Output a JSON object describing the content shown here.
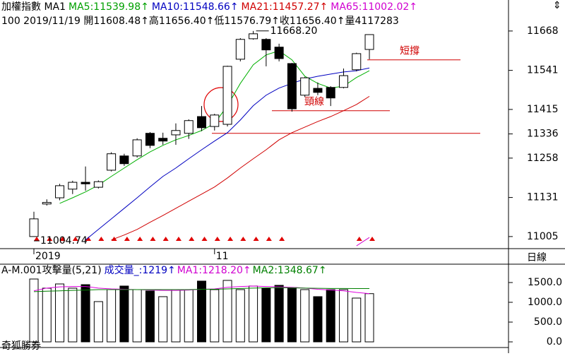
{
  "chart_data": [
    {
      "type": "candlestick",
      "header": [
        {
          "text": "加權指數 MA1",
          "color": "#000000"
        },
        {
          "text": "MA5:11539.98↑",
          "color": "#00a000"
        },
        {
          "text": "MA10:11548.66↑",
          "color": "#0000c0"
        },
        {
          "text": "MA21:11457.27↑",
          "color": "#d00000"
        },
        {
          "text": "MA65:11002.02↑",
          "color": "#d000d0"
        }
      ],
      "subheader": "100 2019/11/19 開11608.48↑高11656.40↑低11576.79↑收11656.40↑量4117283",
      "period_label": "日線",
      "categories": [
        "2019",
        null,
        null,
        null,
        null,
        null,
        null,
        null,
        null,
        null,
        null,
        null,
        null,
        null,
        "11",
        null,
        null,
        null,
        null,
        null,
        null,
        null,
        null,
        null,
        null,
        null,
        null
      ],
      "open": [
        11005,
        11110,
        11130,
        11158,
        11180,
        11164,
        11219,
        11265,
        11265,
        11338,
        11322,
        11333,
        11338,
        11392,
        11360,
        11367,
        11577,
        11643,
        11641,
        11616,
        11563,
        11461,
        11483,
        11486,
        11486,
        11543,
        11608.48
      ],
      "high": [
        11085,
        11125,
        11175,
        11185,
        11231,
        11186,
        11277,
        11272,
        11322,
        11342,
        11340,
        11370,
        11383,
        11426,
        11401,
        11556,
        11645,
        11668.2,
        11645,
        11627,
        11565,
        11520,
        11502,
        11490,
        11547,
        11598,
        11656.4
      ],
      "low": [
        11004.74,
        11105,
        11122,
        11142,
        11153,
        11160,
        11215,
        11233,
        11260,
        11290,
        11301,
        11301,
        11320,
        11345,
        11347,
        11360,
        11570,
        11640,
        11554,
        11570,
        11408,
        11455,
        11461,
        11426,
        11483,
        11538,
        11576.79
      ],
      "close": [
        11062,
        11115,
        11169,
        11180,
        11175,
        11182,
        11272,
        11240,
        11317,
        11299,
        11313,
        11347,
        11379,
        11356,
        11397,
        11554,
        11641,
        11659,
        11607,
        11579,
        11417,
        11517,
        11470,
        11452,
        11524,
        11595,
        11656.4
      ],
      "up_color": "#ffffff",
      "down_color": "#000000",
      "series": [
        {
          "name": "MA5",
          "color": "#00b000",
          "values": [
            null,
            null,
            11112,
            11130,
            11149,
            11171,
            11199,
            11226,
            11253,
            11278,
            11299,
            11317,
            11331,
            11347,
            11370,
            11427,
            11499,
            11559,
            11591,
            11604,
            11575,
            11522,
            11499,
            11484,
            11490,
            11518,
            11539.98
          ]
        },
        {
          "name": "MA10",
          "color": "#0000c0",
          "values": [
            null,
            null,
            null,
            null,
            10994,
            11028,
            11062,
            11096,
            11130,
            11165,
            11199,
            11226,
            11256,
            11285,
            11313,
            11340,
            11381,
            11427,
            11461,
            11484,
            11499,
            11513,
            11522,
            11529,
            11536,
            11540,
            11548.66
          ]
        },
        {
          "name": "MA21",
          "color": "#d00000",
          "values": [
            null,
            null,
            null,
            null,
            null,
            null,
            10994,
            11010,
            11028,
            11051,
            11073,
            11096,
            11119,
            11142,
            11165,
            11194,
            11226,
            11256,
            11285,
            11317,
            11340,
            11358,
            11376,
            11392,
            11411,
            11431,
            11457.27
          ]
        },
        {
          "name": "MA65",
          "color": "#d000d0",
          "values": [
            null,
            null,
            null,
            null,
            null,
            null,
            null,
            null,
            null,
            null,
            null,
            null,
            null,
            null,
            null,
            null,
            null,
            null,
            null,
            null,
            null,
            null,
            null,
            null,
            null,
            10975,
            11002.02
          ]
        }
      ],
      "annotations": [
        {
          "label": "11668.20",
          "value": 11668.2
        },
        {
          "label": "11004.74",
          "value": 11004.74
        }
      ],
      "reference_lines": [
        {
          "label": "短撐",
          "value": 11575
        },
        {
          "label": "頸線",
          "value": 11411
        },
        {
          "value": 11338
        }
      ],
      "line_color": "#d00000",
      "ylim": [
        10966,
        11768
      ],
      "yticks": [
        11005,
        11131,
        11258,
        11336,
        11415,
        11541,
        11668
      ]
    },
    {
      "type": "bar",
      "title": "A-M.001攻擊量(5,21)",
      "legend": [
        {
          "text": "成交量_:1219↑",
          "color": "#0000c0"
        },
        {
          "text": "MA1:1218.20↑",
          "color": "#d000d0"
        },
        {
          "text": "MA2:1348.67↑",
          "color": "#008000"
        }
      ],
      "footer": "奇狐勝券",
      "values": [
        1589,
        1357,
        1464,
        1357,
        1446,
        1018,
        1321,
        1411,
        1321,
        1286,
        1143,
        1321,
        1321,
        1536,
        1321,
        1554,
        1321,
        1411,
        1357,
        1429,
        1375,
        1321,
        1143,
        1321,
        1321,
        1107,
        1219
      ],
      "colors": [
        "#ffffff",
        "#ffffff",
        "#ffffff",
        "#ffffff",
        "#000000",
        "#ffffff",
        "#ffffff",
        "#000000",
        "#ffffff",
        "#000000",
        "#ffffff",
        "#ffffff",
        "#ffffff",
        "#000000",
        "#ffffff",
        "#ffffff",
        "#ffffff",
        "#ffffff",
        "#000000",
        "#000000",
        "#000000",
        "#ffffff",
        "#000000",
        "#000000",
        "#ffffff",
        "#ffffff",
        "#ffffff"
      ],
      "series": [
        {
          "name": "MA1",
          "color": "#e000e0",
          "values": [
            1290,
            1360,
            1390,
            1400,
            1400,
            1360,
            1340,
            1330,
            1320,
            1310,
            1300,
            1300,
            1310,
            1330,
            1340,
            1380,
            1400,
            1410,
            1400,
            1390,
            1380,
            1360,
            1330,
            1310,
            1290,
            1250,
            1218.2
          ]
        },
        {
          "name": "MA2",
          "color": "#008000",
          "values": [
            1270,
            1280,
            1290,
            1300,
            1310,
            1320,
            1320,
            1320,
            1320,
            1320,
            1320,
            1320,
            1320,
            1330,
            1330,
            1340,
            1350,
            1360,
            1365,
            1370,
            1365,
            1360,
            1355,
            1350,
            1350,
            1348,
            1348.67
          ]
        }
      ],
      "ylim": [
        -143,
        1946
      ],
      "yticks": [
        {
          "value": 0,
          "label": "0.0"
        },
        {
          "value": 500,
          "label": "500.0"
        },
        {
          "value": 1000,
          "label": "1000.0"
        },
        {
          "value": 1500,
          "label": "1500.0"
        }
      ]
    }
  ]
}
